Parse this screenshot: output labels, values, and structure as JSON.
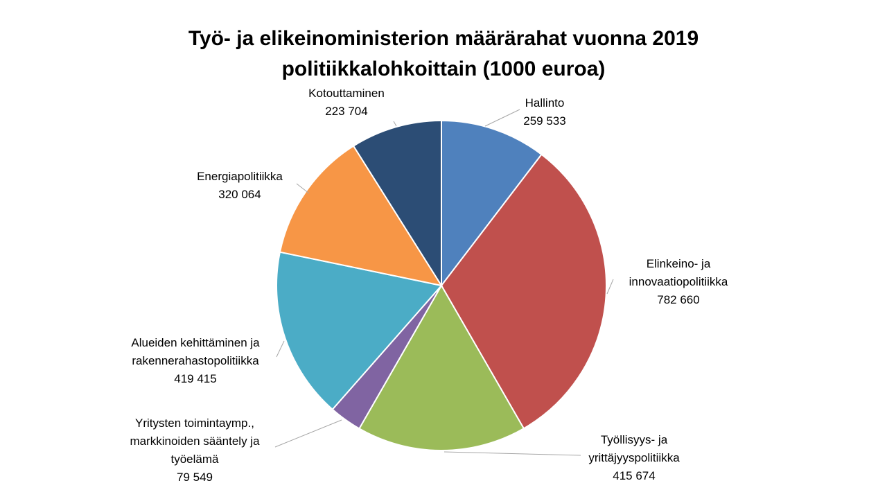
{
  "chart_data": {
    "type": "pie",
    "title_lines": [
      "Työ- ja elikeinoministerion määrärahat vuonna 2019",
      "politiikkalohkoittain (1000 euroa)"
    ],
    "slices": [
      {
        "label_lines": [
          "Hallinto"
        ],
        "value": 259533,
        "value_label": "259 533",
        "color": "#4f81bd"
      },
      {
        "label_lines": [
          "Elinkeino- ja",
          "innovaatiopolitiikka"
        ],
        "value": 782660,
        "value_label": "782 660",
        "color": "#c0504d"
      },
      {
        "label_lines": [
          "Työllisyys- ja",
          "yrittäjyyspolitiikka"
        ],
        "value": 415674,
        "value_label": "415 674",
        "color": "#9bbb59"
      },
      {
        "label_lines": [
          "Yritysten toimintaymp.,",
          "markkinoiden sääntely ja",
          "työelämä"
        ],
        "value": 79549,
        "value_label": "79 549",
        "color": "#8064a2"
      },
      {
        "label_lines": [
          "Alueiden kehittäminen ja",
          "rakennerahastopolitiikka"
        ],
        "value": 419415,
        "value_label": "419 415",
        "color": "#4bacc6"
      },
      {
        "label_lines": [
          "Energiapolitiikka"
        ],
        "value": 320064,
        "value_label": "320 064",
        "color": "#f79646"
      },
      {
        "label_lines": [
          "Kotouttaminen"
        ],
        "value": 223704,
        "value_label": "223 704",
        "color": "#2c4d75"
      }
    ],
    "start_angle": "12 o'clock",
    "direction": "clockwise",
    "legend": "none",
    "data_labels": "outside with leader lines"
  }
}
